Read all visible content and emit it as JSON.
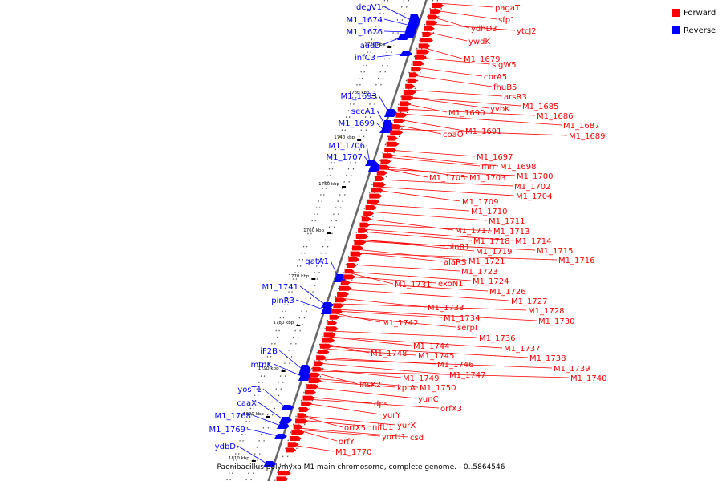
{
  "legend": {
    "items": [
      {
        "label": "Forward",
        "color": "#ff0000"
      },
      {
        "label": "Reverse",
        "color": "#0000ff"
      }
    ]
  },
  "caption": "Paenibacillus polymyxa M1 main chromosome, complete genome. - 0..5864546",
  "colors": {
    "forward": "#ff0000",
    "reverse": "#0000ff",
    "axis": "#666666",
    "tick": "#000000"
  },
  "ticks": [
    "1720 kbp",
    "1730 kbp",
    "1740 kbp",
    "1750 kbp",
    "1760 kbp",
    "1770 kbp",
    "1780 kbp",
    "1790 kbp",
    "1800 kbp",
    "1810 kbp"
  ],
  "reverse_labels": [
    "degV1",
    "M1_1674",
    "M1_1676",
    "aadD",
    "infC3",
    "M1_1693",
    "secA1",
    "M1_1699",
    "M1_1706",
    "M1_1707",
    "gatA1",
    "M1_1741",
    "pinR3",
    "iF2B",
    "mtnK",
    "yosT1",
    "caaX",
    "M1_1768",
    "M1_1769",
    "ydbD"
  ],
  "forward_labels": [
    "pagaT",
    "sfp1",
    "ydhD3",
    "ytcJ2",
    "ywdK",
    "M1_1679",
    "sigW5",
    "cbrA5",
    "fhuB5",
    "arsR3",
    "M1_1685",
    "yvbK",
    "M1_1686",
    "M1_1690",
    "M1_1687",
    "M1_1689",
    "coaO",
    "M1_1691",
    "M1_1697",
    "mrr",
    "M1_1698",
    "M1_1700",
    "M1_1705",
    "M1_1703",
    "M1_1702",
    "M1_1704",
    "M1_1709",
    "M1_1710",
    "M1_1711",
    "M1_1717",
    "M1_1713",
    "M1_1718",
    "M1_1714",
    "pinR1",
    "M1_1715",
    "M1_1719",
    "M1_1716",
    "alaRS",
    "M1_1721",
    "M1_1723",
    "M1_1724",
    "M1_1731",
    "exoN1",
    "M1_1726",
    "M1_1727",
    "M1_1728",
    "M1_1733",
    "M1_1730",
    "M1_1734",
    "M1_1742",
    "serpI",
    "M1_1736",
    "M1_1744",
    "M1_1737",
    "M1_1745",
    "M1_1748",
    "M1_1738",
    "M1_1746",
    "M1_1739",
    "M1_1747",
    "M1_1740",
    "M1_1749",
    "insK2",
    "kptA",
    "M1_1750",
    "yunC",
    "dps",
    "orfX3",
    "yurY",
    "nifU1",
    "yurX",
    "orfX5",
    "yurU1",
    "csd",
    "orfY",
    "M1_1770"
  ]
}
